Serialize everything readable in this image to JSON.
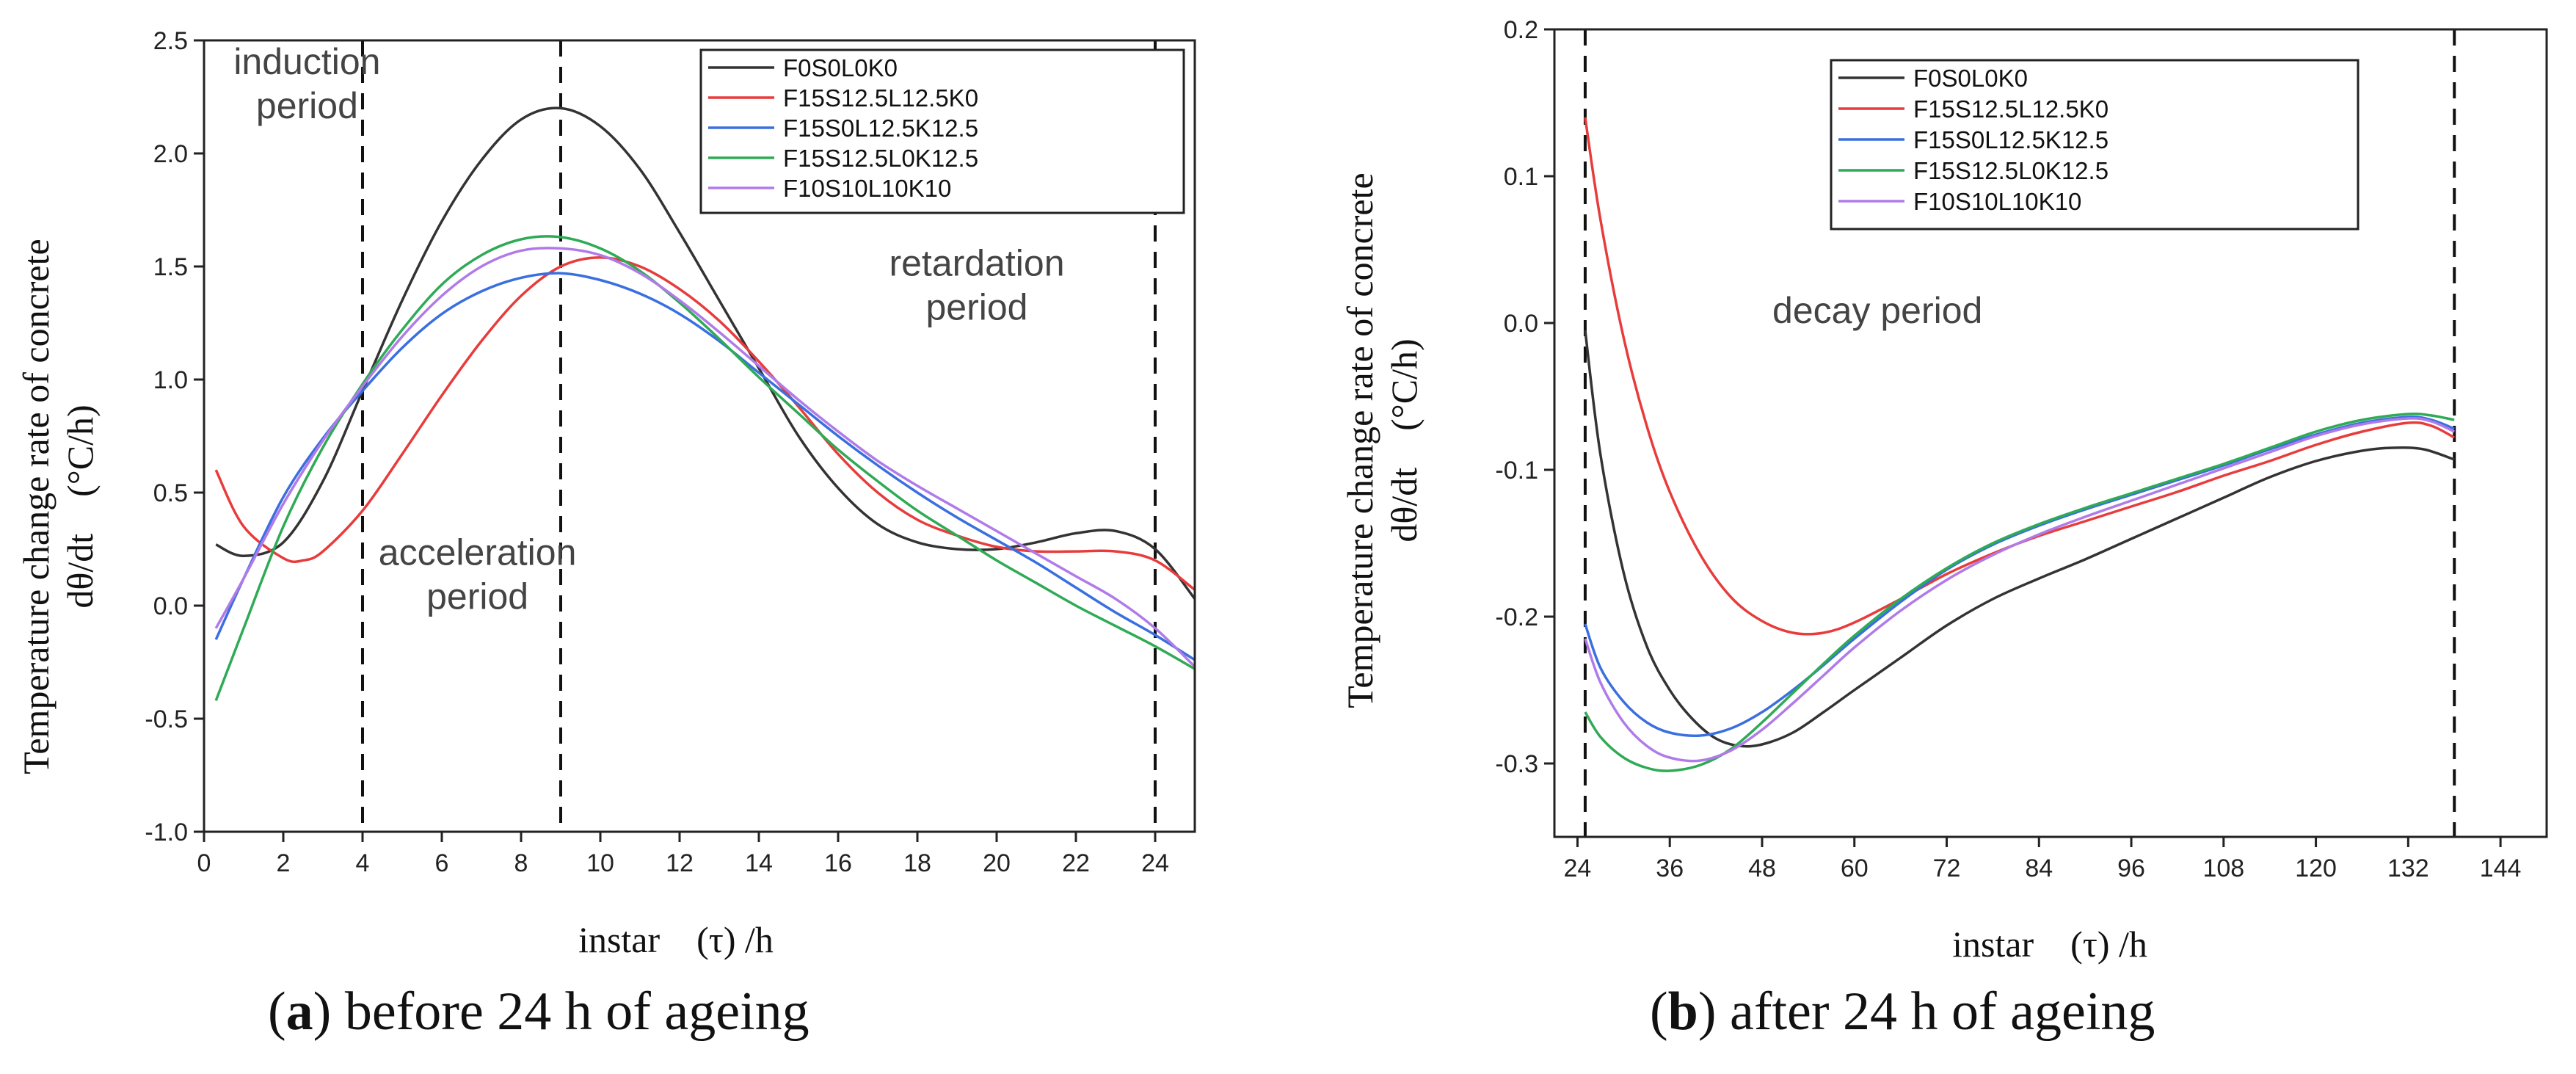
{
  "chart_data": [
    {
      "type": "line",
      "caption": {
        "letter": "a",
        "text": "before 24 h of ageing"
      },
      "xlabel": "instar　(τ) /h",
      "ylabel_line1": "Temperature change rate of concrete",
      "ylabel_line2": "dθ/dt　(°C/h)",
      "xlim": [
        0,
        25
      ],
      "ylim": [
        -1.0,
        2.5
      ],
      "xticks": [
        0,
        2,
        4,
        6,
        8,
        10,
        12,
        14,
        16,
        18,
        20,
        22,
        24
      ],
      "xtick_labels": [
        "0",
        "2",
        "4",
        "6",
        "8",
        "10",
        "12",
        "14",
        "16",
        "18",
        "20",
        "22",
        "24"
      ],
      "yticks": [
        -1.0,
        -0.5,
        0.0,
        0.5,
        1.0,
        1.5,
        2.0,
        2.5
      ],
      "ytick_labels": [
        "-1.0",
        "-0.5",
        "0.0",
        "0.5",
        "1.0",
        "1.5",
        "2.0",
        "2.5"
      ],
      "vlines": [
        4,
        9,
        24
      ],
      "legend_position": "top-right",
      "annotations": [
        {
          "lines": [
            "induction",
            "period"
          ],
          "x": 2.6,
          "y": 2.35
        },
        {
          "lines": [
            "acceleration",
            "period"
          ],
          "x": 6.9,
          "y": 0.18
        },
        {
          "lines": [
            "retardation",
            "period"
          ],
          "x": 19.5,
          "y": 1.46
        }
      ],
      "series": [
        {
          "name": "F0S0L0K0",
          "color": "#333333",
          "x": [
            0.3,
            1,
            2,
            3,
            4,
            5,
            6,
            7,
            8,
            9,
            10,
            11,
            12,
            13,
            14,
            15,
            16,
            17,
            18,
            19,
            20,
            21,
            22,
            23,
            24,
            25
          ],
          "y": [
            0.27,
            0.22,
            0.28,
            0.55,
            0.95,
            1.35,
            1.7,
            1.97,
            2.15,
            2.2,
            2.12,
            1.93,
            1.65,
            1.35,
            1.05,
            0.75,
            0.52,
            0.36,
            0.28,
            0.25,
            0.25,
            0.28,
            0.32,
            0.33,
            0.25,
            0.03
          ]
        },
        {
          "name": "F15S12.5L12.5K0",
          "color": "#e83c3c",
          "x": [
            0.3,
            1,
            2,
            2.5,
            3,
            4,
            5,
            6,
            7,
            8,
            9,
            10,
            11,
            12,
            13,
            14,
            15,
            16,
            17,
            18,
            19,
            20,
            21,
            22,
            23,
            24,
            25
          ],
          "y": [
            0.6,
            0.35,
            0.21,
            0.2,
            0.24,
            0.42,
            0.67,
            0.93,
            1.17,
            1.37,
            1.5,
            1.54,
            1.5,
            1.4,
            1.26,
            1.08,
            0.88,
            0.67,
            0.5,
            0.38,
            0.31,
            0.26,
            0.24,
            0.24,
            0.24,
            0.2,
            0.07
          ]
        },
        {
          "name": "F15S0L12.5K12.5",
          "color": "#3a6fe0",
          "x": [
            0.3,
            1,
            2,
            3,
            4,
            5,
            6,
            7,
            8,
            9,
            10,
            11,
            12,
            13,
            14,
            15,
            16,
            17,
            18,
            19,
            20,
            21,
            22,
            23,
            24,
            25
          ],
          "y": [
            -0.15,
            0.12,
            0.48,
            0.74,
            0.95,
            1.14,
            1.29,
            1.39,
            1.45,
            1.47,
            1.44,
            1.38,
            1.29,
            1.17,
            1.03,
            0.89,
            0.75,
            0.62,
            0.5,
            0.39,
            0.29,
            0.19,
            0.08,
            -0.03,
            -0.13,
            -0.24
          ]
        },
        {
          "name": "F15S12.5L0K12.5",
          "color": "#2faa55",
          "x": [
            0.3,
            1,
            2,
            3,
            4,
            5,
            6,
            7,
            8,
            9,
            10,
            11,
            12,
            13,
            14,
            15,
            16,
            17,
            18,
            19,
            20,
            21,
            22,
            23,
            24,
            25
          ],
          "y": [
            -0.42,
            -0.1,
            0.35,
            0.7,
            0.98,
            1.22,
            1.42,
            1.55,
            1.62,
            1.63,
            1.58,
            1.48,
            1.34,
            1.18,
            1.01,
            0.85,
            0.69,
            0.55,
            0.42,
            0.31,
            0.2,
            0.1,
            0.0,
            -0.09,
            -0.18,
            -0.28
          ]
        },
        {
          "name": "F10S10L10K10",
          "color": "#b07be8",
          "x": [
            0.3,
            1,
            2,
            3,
            4,
            5,
            6,
            7,
            8,
            9,
            10,
            11,
            12,
            13,
            14,
            15,
            16,
            17,
            18,
            19,
            20,
            21,
            22,
            23,
            24,
            25
          ],
          "y": [
            -0.1,
            0.12,
            0.45,
            0.73,
            0.97,
            1.19,
            1.37,
            1.5,
            1.57,
            1.58,
            1.55,
            1.47,
            1.35,
            1.21,
            1.06,
            0.91,
            0.77,
            0.64,
            0.53,
            0.43,
            0.33,
            0.23,
            0.13,
            0.03,
            -0.1,
            -0.27
          ]
        }
      ]
    },
    {
      "type": "line",
      "caption": {
        "letter": "b",
        "text": "after 24 h of ageing"
      },
      "xlabel": "instar　(τ) /h",
      "ylabel_line1": "Temperature change rate of concrete",
      "ylabel_line2": "dθ/dt　(°C/h)",
      "xlim": [
        21,
        150
      ],
      "ylim": [
        -0.35,
        0.2
      ],
      "xticks": [
        24,
        36,
        48,
        60,
        72,
        84,
        96,
        108,
        120,
        132,
        144
      ],
      "xtick_labels": [
        "24",
        "36",
        "48",
        "60",
        "72",
        "84",
        "96",
        "108",
        "120",
        "132",
        "144"
      ],
      "yticks": [
        -0.3,
        -0.2,
        -0.1,
        0.0,
        0.1,
        0.2
      ],
      "ytick_labels": [
        "-0.3",
        "-0.2",
        "-0.1",
        "0.0",
        "0.1",
        "0.2"
      ],
      "vlines": [
        25,
        138
      ],
      "legend_position": "top-center",
      "annotations": [
        {
          "lines": [
            "decay period"
          ],
          "x": 63,
          "y": 0.0
        }
      ],
      "series": [
        {
          "name": "F0S0L0K0",
          "color": "#333333",
          "x": [
            25,
            27,
            30,
            33,
            36,
            39,
            42,
            45,
            48,
            52,
            56,
            60,
            66,
            72,
            78,
            84,
            90,
            96,
            102,
            108,
            114,
            120,
            126,
            130,
            134,
            138
          ],
          "y": [
            -0.005,
            -0.09,
            -0.17,
            -0.22,
            -0.25,
            -0.27,
            -0.283,
            -0.288,
            -0.287,
            -0.279,
            -0.265,
            -0.25,
            -0.228,
            -0.206,
            -0.188,
            -0.174,
            -0.161,
            -0.147,
            -0.133,
            -0.119,
            -0.105,
            -0.094,
            -0.087,
            -0.085,
            -0.086,
            -0.093
          ]
        },
        {
          "name": "F15S12.5L12.5K0",
          "color": "#e83c3c",
          "x": [
            25,
            27,
            30,
            33,
            36,
            40,
            44,
            48,
            52,
            56,
            60,
            66,
            72,
            78,
            84,
            90,
            96,
            102,
            108,
            114,
            120,
            126,
            132,
            135,
            138
          ],
          "y": [
            0.14,
            0.07,
            -0.01,
            -0.07,
            -0.115,
            -0.158,
            -0.187,
            -0.203,
            -0.211,
            -0.211,
            -0.204,
            -0.188,
            -0.171,
            -0.157,
            -0.145,
            -0.135,
            -0.125,
            -0.115,
            -0.104,
            -0.094,
            -0.083,
            -0.074,
            -0.068,
            -0.07,
            -0.078
          ]
        },
        {
          "name": "F15S0L12.5K12.5",
          "color": "#3a6fe0",
          "x": [
            25,
            27,
            30,
            33,
            36,
            40,
            44,
            48,
            52,
            56,
            60,
            66,
            72,
            78,
            84,
            90,
            96,
            102,
            108,
            114,
            120,
            126,
            132,
            135,
            138
          ],
          "y": [
            -0.205,
            -0.235,
            -0.258,
            -0.272,
            -0.279,
            -0.281,
            -0.276,
            -0.265,
            -0.25,
            -0.233,
            -0.215,
            -0.19,
            -0.168,
            -0.151,
            -0.138,
            -0.127,
            -0.117,
            -0.107,
            -0.097,
            -0.086,
            -0.076,
            -0.068,
            -0.064,
            -0.066,
            -0.072
          ]
        },
        {
          "name": "F15S12.5L0K12.5",
          "color": "#2faa55",
          "x": [
            25,
            27,
            30,
            33,
            36,
            40,
            44,
            48,
            52,
            56,
            60,
            66,
            72,
            78,
            84,
            90,
            96,
            102,
            108,
            114,
            120,
            126,
            132,
            135,
            138
          ],
          "y": [
            -0.265,
            -0.282,
            -0.296,
            -0.303,
            -0.305,
            -0.301,
            -0.29,
            -0.272,
            -0.252,
            -0.232,
            -0.213,
            -0.188,
            -0.167,
            -0.15,
            -0.137,
            -0.126,
            -0.116,
            -0.106,
            -0.096,
            -0.085,
            -0.074,
            -0.066,
            -0.062,
            -0.063,
            -0.066
          ]
        },
        {
          "name": "F10S10L10K10",
          "color": "#b07be8",
          "x": [
            25,
            27,
            30,
            33,
            36,
            40,
            44,
            48,
            52,
            56,
            60,
            66,
            72,
            78,
            84,
            90,
            96,
            102,
            108,
            114,
            120,
            126,
            132,
            135,
            138
          ],
          "y": [
            -0.215,
            -0.245,
            -0.272,
            -0.288,
            -0.296,
            -0.298,
            -0.291,
            -0.277,
            -0.259,
            -0.24,
            -0.221,
            -0.196,
            -0.175,
            -0.158,
            -0.144,
            -0.132,
            -0.121,
            -0.11,
            -0.099,
            -0.088,
            -0.077,
            -0.069,
            -0.065,
            -0.067,
            -0.074
          ]
        }
      ]
    }
  ]
}
